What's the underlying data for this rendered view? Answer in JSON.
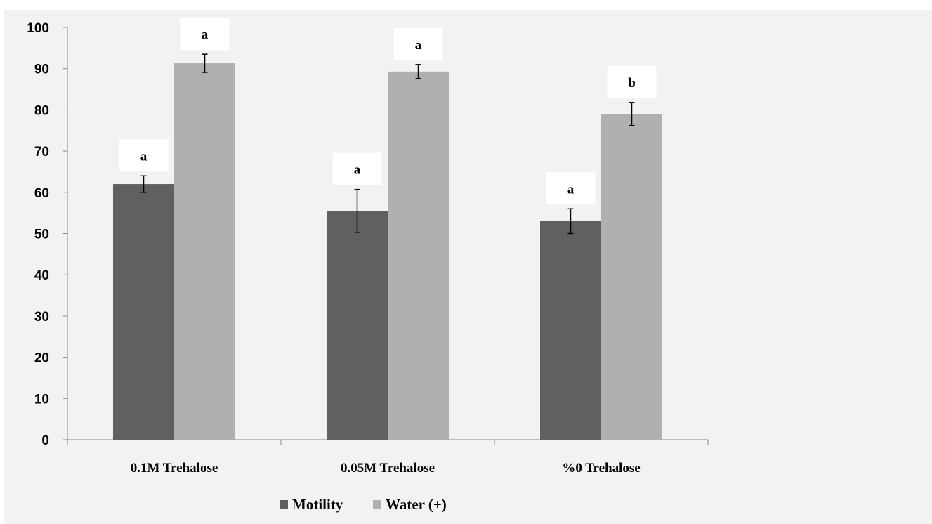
{
  "colors": {
    "background": "#f2f2f2",
    "page": "#ffffff",
    "axis": "#878787",
    "label_box": "#ffffff",
    "error_bar": "#000000"
  },
  "chart_data": {
    "type": "bar",
    "title": "",
    "xlabel": "",
    "ylabel": "",
    "categories": [
      "0.1M Trehalose",
      "0.05M Trehalose",
      "%0 Trehalose"
    ],
    "ylim": [
      0,
      100
    ],
    "yticks": [
      0,
      10,
      20,
      30,
      40,
      50,
      60,
      70,
      80,
      90,
      100
    ],
    "grid": false,
    "legend_position": "bottom",
    "series": [
      {
        "name": "Motility",
        "color": "#606060",
        "values": [
          62,
          55.5,
          53
        ],
        "error": [
          2,
          5.2,
          3
        ],
        "significance": [
          "a",
          "a",
          "a"
        ]
      },
      {
        "name": "Water (+)",
        "color": "#b0b0b0",
        "values": [
          91.3,
          89.3,
          79
        ],
        "error": [
          2.2,
          1.7,
          2.8
        ],
        "significance": [
          "a",
          "a",
          "b"
        ]
      }
    ]
  }
}
